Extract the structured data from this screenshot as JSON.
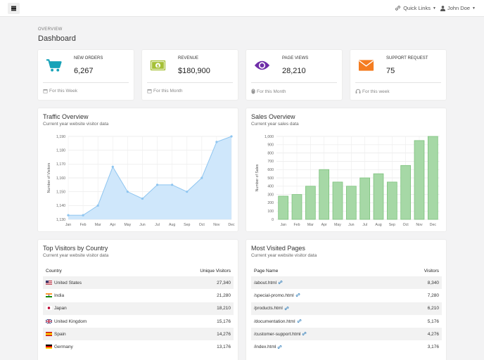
{
  "topbar": {
    "quick_links": "Quick Links",
    "user": "John Doe"
  },
  "breadcrumb": "OVERVIEW",
  "page_title": "Dashboard",
  "stats": [
    {
      "label": "NEW ORDERS",
      "value": "6,267",
      "footer": "For this Week",
      "color": "#17a2b8"
    },
    {
      "label": "REVENUE",
      "value": "$180,900",
      "footer": "For this Month",
      "color": "#a5c036"
    },
    {
      "label": "PAGE VIEWS",
      "value": "28,210",
      "footer": "For this Month",
      "color": "#6f2da8"
    },
    {
      "label": "SUPPORT REQUEST",
      "value": "75",
      "footer": "For this week",
      "color": "#f47c20"
    }
  ],
  "traffic": {
    "title": "Traffic Overview",
    "subtitle": "Current year website visitor data"
  },
  "sales": {
    "title": "Sales Overview",
    "subtitle": "Current year sales data"
  },
  "chart_data": [
    {
      "type": "area",
      "title": "Traffic Overview",
      "ylabel": "Number of Visitors",
      "categories": [
        "Jan",
        "Feb",
        "Mar",
        "Apr",
        "May",
        "Jun",
        "Jul",
        "Aug",
        "Sep",
        "Oct",
        "Nov",
        "Dec"
      ],
      "values": [
        1133,
        1133,
        1140,
        1168,
        1150,
        1145,
        1155,
        1155,
        1150,
        1160,
        1186,
        1190
      ],
      "ylim": [
        1130,
        1190
      ],
      "yticks": [
        "1,130",
        "1,140",
        "1,150",
        "1,160",
        "1,170",
        "1,180",
        "1,190"
      ]
    },
    {
      "type": "bar",
      "title": "Sales Overview",
      "ylabel": "Number of Sales",
      "categories": [
        "Jan",
        "Feb",
        "Mar",
        "Apr",
        "May",
        "Jun",
        "Jul",
        "Aug",
        "Sep",
        "Oct",
        "Nov",
        "Dec"
      ],
      "values": [
        280,
        300,
        400,
        600,
        450,
        400,
        500,
        550,
        450,
        650,
        950,
        1000
      ],
      "ylim": [
        0,
        1000
      ],
      "yticks": [
        "0",
        "100",
        "200",
        "300",
        "400",
        "500",
        "600",
        "700",
        "800",
        "900",
        "1,000"
      ]
    }
  ],
  "visitors": {
    "title": "Top Visitors by Country",
    "subtitle": "Current year website visitor data",
    "col_country": "Country",
    "col_unique": "Unique Visitors",
    "rows": [
      {
        "country": "United States",
        "visitors": "27,340"
      },
      {
        "country": "India",
        "visitors": "21,280"
      },
      {
        "country": "Japan",
        "visitors": "18,210"
      },
      {
        "country": "United Kingdom",
        "visitors": "15,176"
      },
      {
        "country": "Spain",
        "visitors": "14,276"
      },
      {
        "country": "Germany",
        "visitors": "13,176"
      }
    ]
  },
  "pages": {
    "title": "Most Visited Pages",
    "subtitle": "Current year website visitor data",
    "col_page": "Page Name",
    "col_visitors": "Visitors",
    "rows": [
      {
        "page": "/about.html",
        "visitors": "8,340"
      },
      {
        "page": "/special-promo.html",
        "visitors": "7,280"
      },
      {
        "page": "/products.html",
        "visitors": "6,210"
      },
      {
        "page": "/documentation.html",
        "visitors": "5,176"
      },
      {
        "page": "/customer-support.html",
        "visitors": "4,276"
      },
      {
        "page": "/index.html",
        "visitors": "3,176"
      }
    ]
  }
}
